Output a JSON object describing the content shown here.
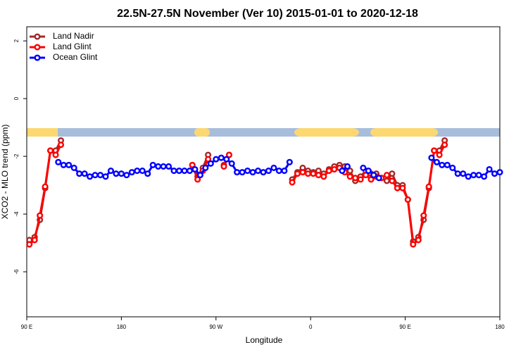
{
  "chart_data": {
    "type": "line",
    "title": "22.5N-27.5N November (Ver 10)   2015-01-01 to 2020-12-18",
    "x_label": "Longitude",
    "y_label": "XCO2 - MLO trend (ppm)",
    "xlim": [
      90,
      540
    ],
    "ylim": [
      -7.56,
      2.49
    ],
    "xticks": [
      {
        "value": 90,
        "label": "90 E"
      },
      180,
      {
        "value": 270,
        "label": "90 W"
      },
      {
        "value": 360,
        "label": "0"
      },
      {
        "value": 450,
        "label": "90 E"
      },
      {
        "value": 540,
        "label": "180"
      }
    ],
    "yticks": [
      2,
      0,
      -2,
      -4,
      -6
    ],
    "legend": "top-left",
    "series": [
      {
        "name": "Land Nadir",
        "color": "#a52a2a",
        "x": [
          92.5,
          97.5,
          102.5,
          107.5,
          112.5,
          117.5,
          122.5,
          185,
          247.5,
          252.5,
          257.5,
          262.5,
          270,
          277.5,
          282.5,
          315,
          342.5,
          347.5,
          352.5,
          357.5,
          362.5,
          367.5,
          372.5,
          377.5,
          382.5,
          387.5,
          392.5,
          397.5,
          402.5,
          407.5,
          412.5,
          417.5,
          422.5,
          427.5,
          432.5,
          437.5,
          442.5,
          447.5,
          452.5,
          457.5,
          462.5,
          467.5,
          472.5,
          477.5,
          482.5,
          487.5
        ],
        "values": [
          -4.9,
          -4.8,
          -4.2,
          -3.1,
          -1.8,
          -1.8,
          -1.45,
          null,
          -2.3,
          -2.7,
          -2.4,
          -1.95,
          null,
          -2.3,
          -1.95,
          null,
          -2.8,
          -2.55,
          -2.4,
          -2.5,
          -2.55,
          -2.5,
          -2.6,
          -2.45,
          -2.35,
          -2.3,
          -2.35,
          -2.5,
          -2.85,
          -2.7,
          -2.5,
          -2.6,
          -2.6,
          -2.75,
          -2.85,
          -2.6,
          -3.0,
          -3.0,
          -3.5,
          -4.95,
          -4.8,
          -4.2,
          -3.1,
          -1.8,
          -1.8,
          -1.45
        ]
      },
      {
        "name": "Land Glint",
        "color": "#ff0000",
        "x": [
          92.5,
          97.5,
          102.5,
          107.5,
          112.5,
          117.5,
          122.5,
          185,
          247.5,
          252.5,
          257.5,
          262.5,
          270,
          277.5,
          282.5,
          315,
          342.5,
          347.5,
          352.5,
          357.5,
          362.5,
          367.5,
          372.5,
          377.5,
          382.5,
          387.5,
          392.5,
          397.5,
          402.5,
          407.5,
          412.5,
          417.5,
          422.5,
          427.5,
          432.5,
          437.5,
          442.5,
          447.5,
          452.5,
          457.5,
          462.5,
          467.5,
          472.5,
          477.5,
          482.5,
          487.5
        ],
        "values": [
          -5.05,
          -4.9,
          -4.05,
          -3.05,
          -1.8,
          -1.95,
          -1.6,
          null,
          -2.3,
          -2.8,
          -2.5,
          -2.1,
          null,
          -2.35,
          -1.95,
          null,
          -2.9,
          -2.6,
          -2.55,
          -2.6,
          -2.6,
          -2.65,
          -2.7,
          -2.5,
          -2.45,
          -2.4,
          -2.55,
          -2.7,
          -2.75,
          -2.8,
          -2.65,
          -2.8,
          -2.7,
          -2.75,
          -2.65,
          -2.85,
          -3.1,
          -3.1,
          -3.5,
          -5.05,
          -4.9,
          -4.05,
          -3.05,
          -1.8,
          -1.95,
          -1.6
        ]
      },
      {
        "name": "Ocean Glint",
        "color": "#0000ff",
        "x": [
          120,
          125,
          130,
          135,
          140,
          145,
          150,
          155,
          160,
          165,
          170,
          175,
          180,
          185,
          190,
          195,
          200,
          205,
          210,
          215,
          220,
          225,
          230,
          235,
          240,
          245,
          250,
          255,
          260,
          265,
          270,
          275,
          280,
          285,
          290,
          295,
          300,
          305,
          310,
          315,
          320,
          325,
          330,
          335,
          340,
          370,
          390,
          395,
          400,
          410,
          415,
          420,
          425,
          470,
          475,
          480,
          485,
          490,
          495,
          500,
          505,
          510,
          515,
          520,
          525,
          530,
          535,
          540
        ],
        "values": [
          -2.2,
          -2.3,
          -2.3,
          -2.4,
          -2.6,
          -2.6,
          -2.7,
          -2.65,
          -2.65,
          -2.7,
          -2.5,
          -2.6,
          -2.6,
          -2.65,
          -2.55,
          -2.5,
          -2.5,
          -2.6,
          -2.3,
          -2.35,
          -2.35,
          -2.35,
          -2.5,
          -2.5,
          -2.5,
          -2.5,
          -2.45,
          -2.65,
          -2.4,
          -2.25,
          -2.1,
          -2.05,
          -2.1,
          -2.25,
          -2.55,
          -2.55,
          -2.5,
          -2.55,
          -2.5,
          -2.55,
          -2.5,
          -2.4,
          -2.5,
          -2.5,
          -2.2,
          null,
          -2.5,
          -2.35,
          null,
          -2.4,
          -2.5,
          -2.65,
          -2.75,
          null,
          -2.05,
          -2.2,
          -2.3,
          -2.3,
          -2.4,
          -2.6,
          -2.6,
          -2.7,
          -2.65,
          -2.65,
          -2.7,
          -2.45,
          -2.6,
          -2.55
        ]
      }
    ]
  }
}
